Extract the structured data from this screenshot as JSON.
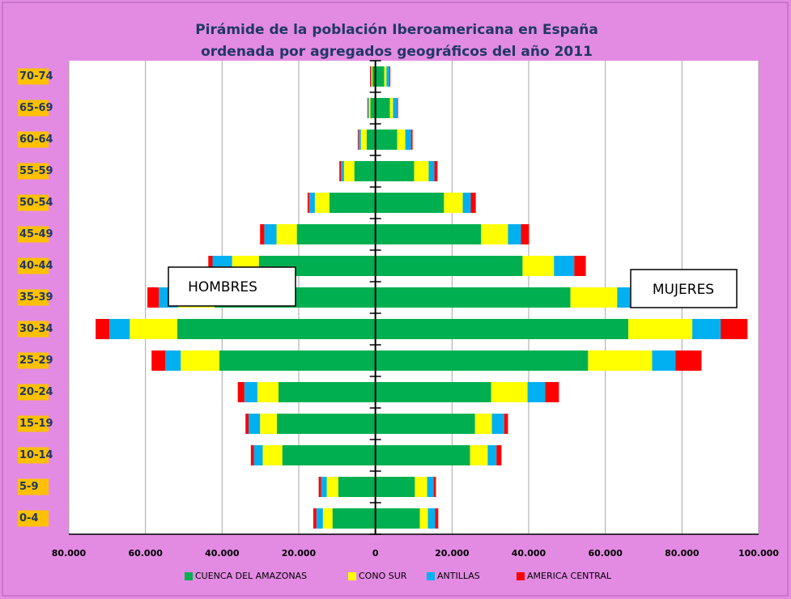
{
  "chart_data": {
    "type": "pyramid",
    "title": [
      "Pirámide de la población Iberoamericana en España",
      "ordenada por agregados geográficos del año 2011"
    ],
    "annotations": [
      "HOMBRES",
      "MUJERES"
    ],
    "categories": [
      "0-4",
      "5-9",
      "10-14",
      "15-19",
      "20-24",
      "25-29",
      "30-34",
      "35-39",
      "40-44",
      "45-49",
      "50-54",
      "55-59",
      "60-64",
      "65-69",
      "70-74"
    ],
    "series": [
      {
        "name": "CUENCA DEL AMAZONAS",
        "color": "#00b050",
        "hombres": [
          -11200,
          -9700,
          -24300,
          -25700,
          -25300,
          -40700,
          -51700,
          -42000,
          -30400,
          -20500,
          -12000,
          -5500,
          -2300,
          -1300,
          -800
        ],
        "mujeres": [
          11600,
          10300,
          24700,
          26000,
          30200,
          55500,
          66000,
          50900,
          38400,
          27600,
          17900,
          10100,
          5700,
          3800,
          2300
        ]
      },
      {
        "name": "CONO SUR",
        "color": "#ffff00",
        "hombres": [
          -2500,
          -3000,
          -5100,
          -4400,
          -5500,
          -10100,
          -12400,
          -9500,
          -7000,
          -5300,
          -3800,
          -2700,
          -1500,
          -400,
          -200
        ],
        "mujeres": [
          2100,
          3200,
          4600,
          4400,
          9500,
          16700,
          16700,
          12200,
          8200,
          7000,
          4900,
          3800,
          2100,
          800,
          600
        ]
      },
      {
        "name": "ANTILLAS",
        "color": "#00b0f0",
        "hombres": [
          -1700,
          -1500,
          -2300,
          -3000,
          -3400,
          -4000,
          -5300,
          -5000,
          -5100,
          -3200,
          -1500,
          -800,
          -600,
          -200,
          -200
        ],
        "mujeres": [
          1900,
          1700,
          2300,
          3200,
          4600,
          6100,
          7400,
          5500,
          5300,
          3400,
          2100,
          1500,
          1500,
          1100,
          800
        ]
      },
      {
        "name": "AMERICA CENTRAL",
        "color": "#ff0000",
        "hombres": [
          -800,
          -600,
          -800,
          -800,
          -1700,
          -3600,
          -3600,
          -3000,
          -1100,
          -1100,
          -400,
          -400,
          -200,
          -200,
          -200
        ],
        "mujeres": [
          800,
          600,
          1300,
          1000,
          3600,
          6800,
          7000,
          3500,
          3000,
          2100,
          1300,
          800,
          400,
          200,
          200
        ]
      }
    ],
    "xlim": [
      -80000,
      100000
    ],
    "xticks": [
      {
        "value": -80000,
        "label": "80.000"
      },
      {
        "value": -60000,
        "label": "60.000"
      },
      {
        "value": -40000,
        "label": "40.000"
      },
      {
        "value": -20000,
        "label": "20.000"
      },
      0,
      {
        "value": 20000,
        "label": "20.000"
      },
      {
        "value": 40000,
        "label": "40.000"
      },
      {
        "value": 60000,
        "label": "60.000"
      },
      {
        "value": 80000,
        "label": "80.000"
      },
      {
        "value": 100000,
        "label": "100.000"
      }
    ],
    "grid": true,
    "legend": "bottom"
  }
}
